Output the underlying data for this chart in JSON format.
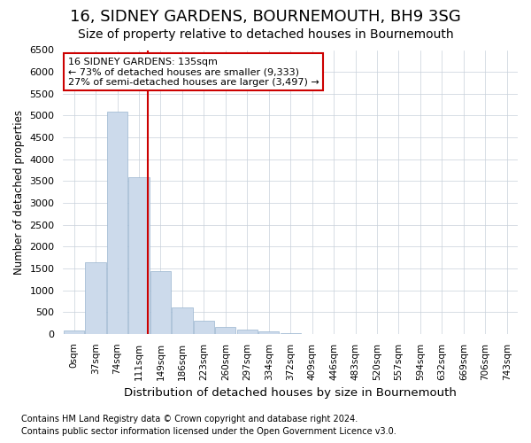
{
  "title": "16, SIDNEY GARDENS, BOURNEMOUTH, BH9 3SG",
  "subtitle": "Size of property relative to detached houses in Bournemouth",
  "xlabel": "Distribution of detached houses by size in Bournemouth",
  "ylabel": "Number of detached properties",
  "footnote1": "Contains HM Land Registry data © Crown copyright and database right 2024.",
  "footnote2": "Contains public sector information licensed under the Open Government Licence v3.0.",
  "bar_labels": [
    "0sqm",
    "37sqm",
    "74sqm",
    "111sqm",
    "149sqm",
    "186sqm",
    "223sqm",
    "260sqm",
    "297sqm",
    "334sqm",
    "372sqm",
    "409sqm",
    "446sqm",
    "483sqm",
    "520sqm",
    "557sqm",
    "594sqm",
    "632sqm",
    "669sqm",
    "706sqm",
    "743sqm"
  ],
  "bar_values": [
    80,
    1650,
    5080,
    3580,
    1430,
    615,
    300,
    150,
    90,
    50,
    15,
    5,
    0,
    0,
    0,
    0,
    0,
    0,
    0,
    0,
    0
  ],
  "bar_color": "#ccdaeb",
  "bar_edge_color": "#9ab5d0",
  "vline_color": "#cc0000",
  "vline_x": 3.42,
  "annotation_line1": "16 SIDNEY GARDENS: 135sqm",
  "annotation_line2": "← 73% of detached houses are smaller (9,333)",
  "annotation_line3": "27% of semi-detached houses are larger (3,497) →",
  "annotation_box_color": "#cc0000",
  "ylim": [
    0,
    6500
  ],
  "yticks": [
    0,
    500,
    1000,
    1500,
    2000,
    2500,
    3000,
    3500,
    4000,
    4500,
    5000,
    5500,
    6000,
    6500
  ],
  "bg_color": "#ffffff",
  "plot_bg_color": "#ffffff",
  "grid_color": "#c8d0da",
  "title_fontsize": 13,
  "subtitle_fontsize": 10
}
